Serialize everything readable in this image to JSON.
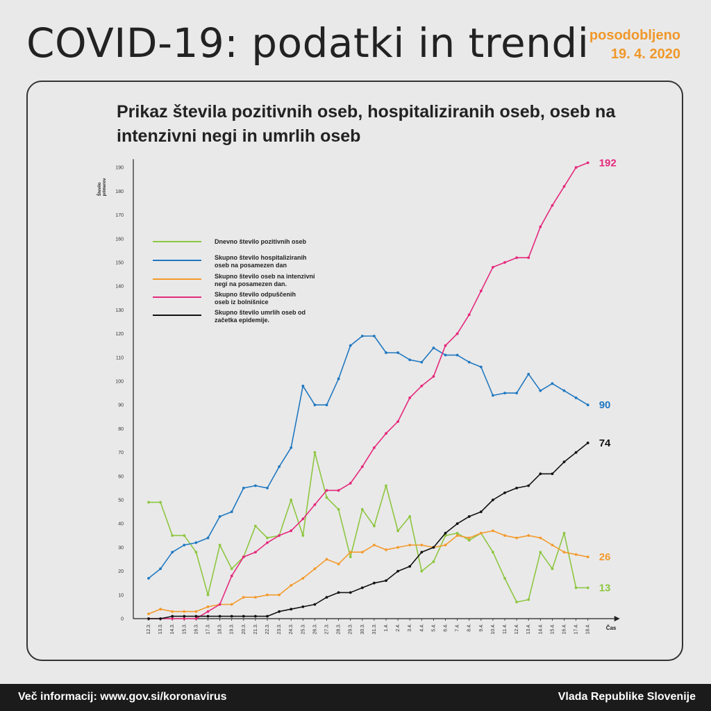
{
  "header": {
    "title": "COVID-19: podatki in trendi",
    "updated_line1": "posodobljeno",
    "updated_line2": "19. 4. 2020"
  },
  "footer": {
    "info": "Več informacij: www.gov.si/koronavirus",
    "org": "Vlada Republike Slovenije"
  },
  "chart_data": {
    "type": "line",
    "title": "Prikaz števila pozitivnih oseb, hospitaliziranih oseb, oseb na intenzivni negi in umrlih oseb",
    "ylabel": "Število primerov",
    "xlabel": "Čas",
    "ylim": [
      0,
      190
    ],
    "ytick_step": 10,
    "categories": [
      "12.3.",
      "13.3.",
      "14.3.",
      "15.3.",
      "16.3.",
      "17.3.",
      "18.3.",
      "19.3.",
      "20.3.",
      "21.3.",
      "22.3.",
      "23.3.",
      "24.3.",
      "25.3.",
      "26.3.",
      "27.3.",
      "28.3.",
      "29.3.",
      "30.3.",
      "31.3.",
      "1.4.",
      "2.4.",
      "3.4.",
      "4.4.",
      "5.4.",
      "6.4.",
      "7.4.",
      "8.4.",
      "9.4.",
      "10.4.",
      "11.4.",
      "12.4.",
      "13.4.",
      "14.4.",
      "15.4.",
      "16.4.",
      "17.4.",
      "18.4."
    ],
    "series": [
      {
        "name": "Dnevno število pozitivnih oseb",
        "name_line1": "Dnevno število pozitivnih oseb",
        "name_line2": "",
        "color": "#8dc63f",
        "values": [
          49,
          49,
          35,
          35,
          28,
          10,
          31,
          21,
          26,
          39,
          34,
          35,
          50,
          35,
          70,
          51,
          46,
          26,
          46,
          39,
          56,
          37,
          43,
          20,
          24,
          35,
          36,
          33,
          36,
          28,
          17,
          7,
          8,
          28,
          21,
          36,
          13,
          13
        ]
      },
      {
        "name": "Skupno število hospitaliziranih oseb na posamezen dan",
        "name_line1": "Skupno število hospitaliziranih",
        "name_line2": "oseb na posamezen dan",
        "color": "#1f78c1",
        "values": [
          17,
          21,
          28,
          31,
          32,
          34,
          43,
          45,
          55,
          56,
          55,
          64,
          72,
          98,
          90,
          90,
          101,
          115,
          119,
          119,
          112,
          112,
          109,
          108,
          114,
          111,
          111,
          108,
          106,
          94,
          95,
          95,
          103,
          96,
          99,
          96,
          93,
          90
        ]
      },
      {
        "name": "Skupno število oseb na intenzivni negi na posamezen dan.",
        "name_line1": "Skupno število oseb na intenzivni",
        "name_line2": "negi na posamezen dan.",
        "color": "#f39a2c",
        "values": [
          2,
          4,
          3,
          3,
          3,
          5,
          6,
          6,
          9,
          9,
          10,
          10,
          14,
          17,
          21,
          25,
          23,
          28,
          28,
          31,
          29,
          30,
          31,
          31,
          30,
          31,
          35,
          34,
          36,
          37,
          35,
          34,
          35,
          34,
          31,
          28,
          27,
          26
        ]
      },
      {
        "name": "Skupno število odpuščenih oseb iz bolnišnice",
        "name_line1": "Skupno število odpuščenih",
        "name_line2": "oseb iz bolnišnice",
        "color": "#e5287c",
        "values": [
          0,
          0,
          0,
          0,
          0,
          3,
          6,
          18,
          26,
          28,
          32,
          35,
          37,
          42,
          48,
          54,
          54,
          57,
          64,
          72,
          78,
          83,
          93,
          98,
          102,
          115,
          120,
          128,
          138,
          148,
          150,
          152,
          152,
          165,
          174,
          182,
          190,
          192
        ]
      },
      {
        "name": "Skupno število umrlih oseb od začetka epidemije.",
        "name_line1": "Skupno število umrlih oseb od",
        "name_line2": "začetka epidemije.",
        "color": "#111111",
        "values": [
          0,
          0,
          1,
          1,
          1,
          1,
          1,
          1,
          1,
          1,
          1,
          3,
          4,
          5,
          6,
          9,
          11,
          11,
          13,
          15,
          16,
          20,
          22,
          28,
          30,
          36,
          40,
          43,
          45,
          50,
          53,
          55,
          56,
          61,
          61,
          66,
          70,
          74
        ]
      }
    ],
    "end_labels": [
      "13",
      "90",
      "26",
      "192",
      "74"
    ],
    "legend_position": "top-left",
    "grid": false
  }
}
